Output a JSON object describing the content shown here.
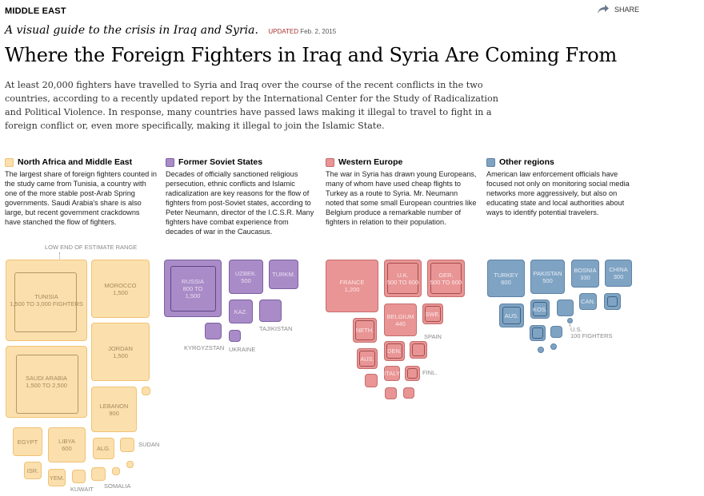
{
  "section_label": "MIDDLE EAST",
  "share_label": "SHARE",
  "kicker": "A visual guide to the crisis in Iraq and Syria.",
  "updated_label": "UPDATED",
  "updated_date": "Feb. 2, 2015",
  "headline": "Where the Foreign Fighters in Iraq and Syria Are Coming From",
  "intro": "At least 20,000 fighters have travelled to Syria and Iraq over the course of the recent conflicts in the two countries, according to a recently updated report by the International Center for the Study of Radicalization and Political Violence. In response, many countries have passed laws making it illegal to travel to fight in a foreign conflict or, even more specifically, making it illegal to join the Islamic State.",
  "regions": [
    {
      "title": "North Africa and Middle East",
      "color": "#fbe0ae",
      "text": "The largest share of foreign fighters counted in the study came from Tunisia, a country with one of the more stable post-Arab Spring governments. Saudi Arabia's share is also large, but recent government crackdowns have stanched the flow of fighters."
    },
    {
      "title": "Former Soviet States",
      "color": "#a98bc7",
      "text": "Decades of officially sanctioned religious persecution, ethnic conflicts and Islamic radicalization are key reasons for the flow of fighters from post-Soviet states, according to Peter Neumann, director of the I.C.S.R. Many fighters have combat experience from decades of war in the Caucasus."
    },
    {
      "title": "Western Europe",
      "color": "#e99595",
      "text": "The war in Syria has drawn young Europeans, many of whom have used cheap flights to Turkey as a route to Syria. Mr. Neumann noted that some small European countries like Belgium produce a remarkable number of fighters in relation to their population."
    },
    {
      "title": "Other regions",
      "color": "#7fa3c3",
      "text": "American law enforcement officials have focused not only on monitoring social media networks more aggressively, but also on educating state and local authorities about ways to identify potential travelers."
    }
  ],
  "estimate_label": "LOW END OF ESTIMATE RANGE",
  "countries": {
    "tunisia": {
      "name": "TUNISIA",
      "value": "1,500 TO 3,000 FIGHTERS"
    },
    "morocco": {
      "name": "MOROCCO",
      "value": "1,500"
    },
    "saudi": {
      "name": "SAUDI ARABIA",
      "value": "1,500 TO 2,500"
    },
    "jordan": {
      "name": "JORDAN",
      "value": "1,500"
    },
    "lebanon": {
      "name": "LEBANON",
      "value": "900"
    },
    "egypt": {
      "name": "EGYPT",
      "value": ""
    },
    "libya": {
      "name": "LIBYA",
      "value": "600"
    },
    "algeria": {
      "name": "ALG.",
      "value": ""
    },
    "sudan": {
      "name": "SUDAN",
      "value": ""
    },
    "israel": {
      "name": "ISR.",
      "value": ""
    },
    "yemen": {
      "name": "YEM.",
      "value": ""
    },
    "kuwait": {
      "name": "KUWAIT",
      "value": ""
    },
    "somalia": {
      "name": "SOMALIA",
      "value": ""
    },
    "russia": {
      "name": "RUSSIA",
      "value": "800 TO 1,500"
    },
    "uzbek": {
      "name": "UZBEK.",
      "value": "500"
    },
    "turkm": {
      "name": "TURKM.",
      "value": ""
    },
    "kaz": {
      "name": "KAZ.",
      "value": ""
    },
    "tajik": {
      "name": "TAJIKISTAN",
      "value": ""
    },
    "kyrgyz": {
      "name": "KYRGYZSTAN",
      "value": ""
    },
    "ukraine": {
      "name": "UKRAINE",
      "value": ""
    },
    "france": {
      "name": "FRANCE",
      "value": "1,200"
    },
    "uk": {
      "name": "U.K.",
      "value": "500 TO 600"
    },
    "ger": {
      "name": "GER.",
      "value": "500 TO 600"
    },
    "belgium": {
      "name": "BELGIUM",
      "value": "440"
    },
    "swe": {
      "name": "SWE.",
      "value": ""
    },
    "spain": {
      "name": "SPAIN",
      "value": ""
    },
    "neth": {
      "name": "NETH.",
      "value": ""
    },
    "aus_eu": {
      "name": "AUS.",
      "value": ""
    },
    "den": {
      "name": "DEN.",
      "value": ""
    },
    "italy": {
      "name": "ITALY",
      "value": ""
    },
    "fin": {
      "name": "FINL.",
      "value": ""
    },
    "turkey": {
      "name": "TURKEY",
      "value": "600"
    },
    "pakistan": {
      "name": "PAKISTAN",
      "value": "500"
    },
    "bosnia": {
      "name": "BOSNIA",
      "value": "330"
    },
    "china": {
      "name": "CHINA",
      "value": "300"
    },
    "can": {
      "name": "CAN.",
      "value": ""
    },
    "aus_o": {
      "name": "AUS.",
      "value": ""
    },
    "kos": {
      "name": "KOS.",
      "value": ""
    },
    "us": {
      "name": "U.S.",
      "value": "100 FIGHTERS"
    }
  }
}
